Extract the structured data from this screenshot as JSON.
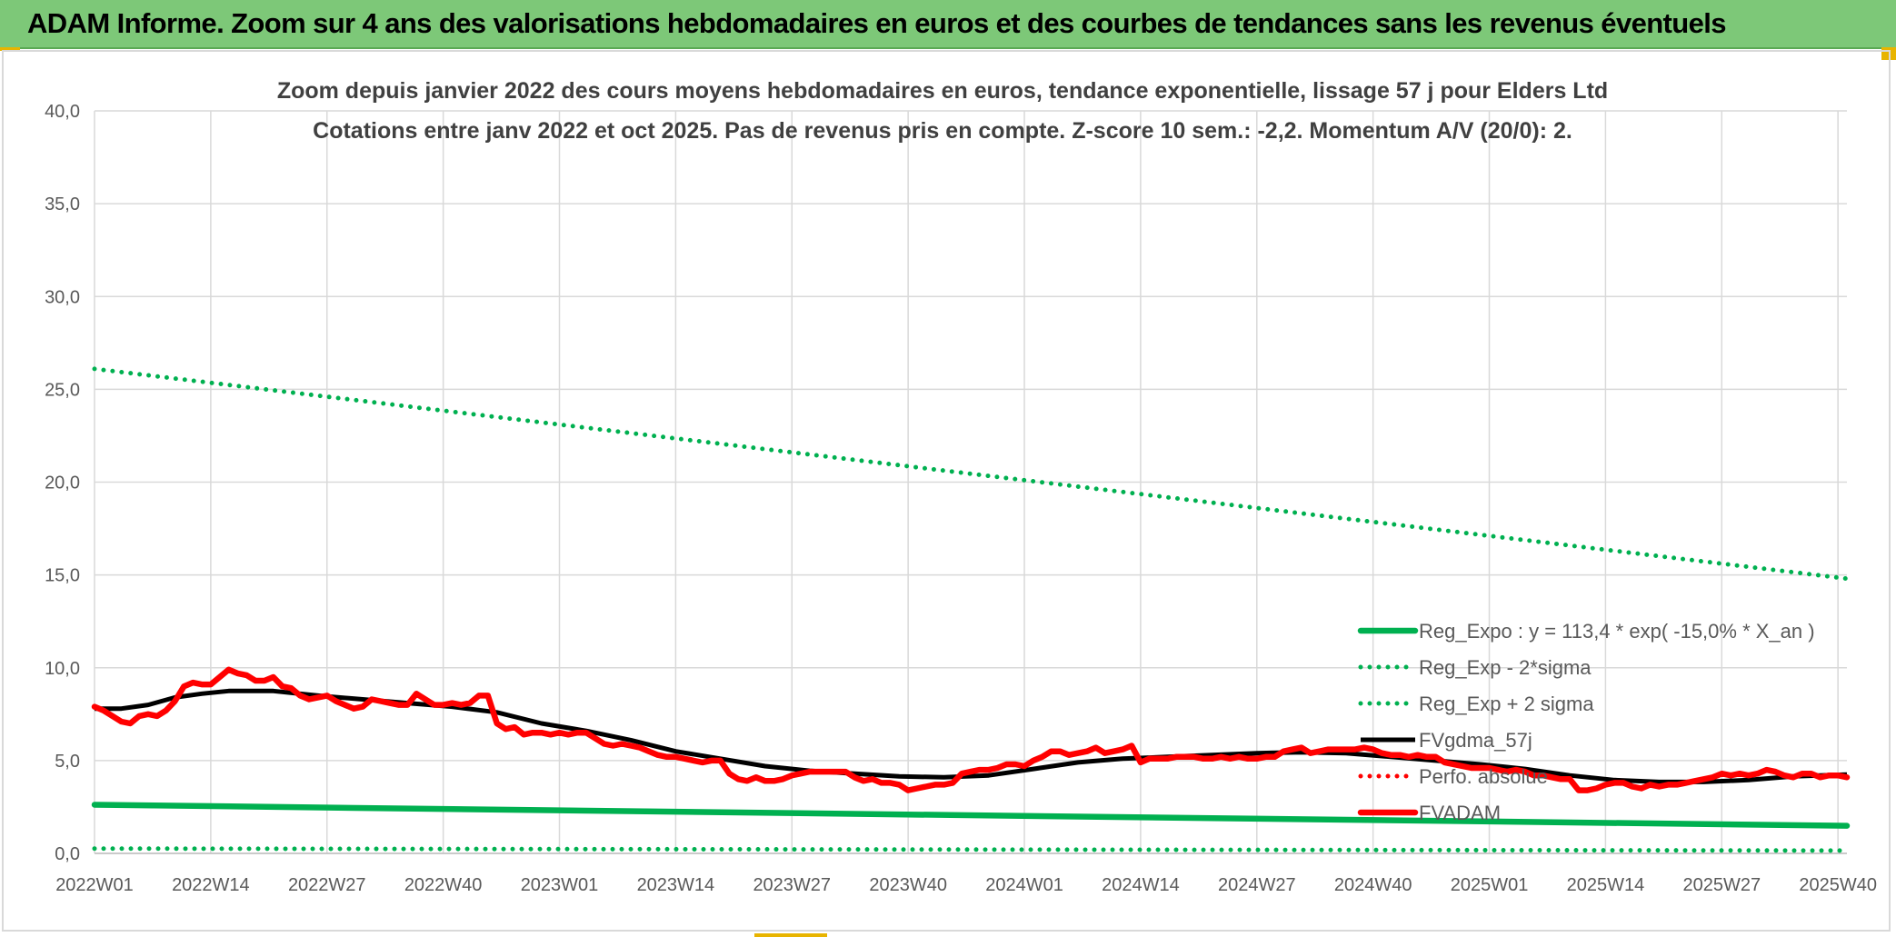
{
  "banner_title": "ADAM Informe. Zoom sur 4 ans des valorisations hebdomadaires en euros et des courbes de tendances sans les revenus éventuels",
  "colors": {
    "banner": "#7dc878",
    "trend": "#00b050",
    "price": "#ff0000",
    "mma": "#000000",
    "perf": "#ff0000",
    "grid": "#d9d9d9"
  },
  "chart_data": {
    "type": "line",
    "title_lines": [
      "Zoom depuis janvier 2022 des cours moyens hebdomadaires en euros, tendance exponentielle, lissage 57 j pour Elders Ltd",
      "Cotations entre janv 2022 et oct 2025. Pas de revenus pris en compte. Z-score 10 sem.: -2,2. Momentum A/V (20/0): 2."
    ],
    "xlabel": "",
    "ylabel": "",
    "ylim": [
      0,
      40
    ],
    "yticks": [
      "0,0",
      "5,0",
      "10,0",
      "15,0",
      "20,0",
      "25,0",
      "30,0",
      "35,0",
      "40,0"
    ],
    "x_range_weeks": [
      0,
      196
    ],
    "xticks": [
      {
        "label": "2022W01",
        "week": 0
      },
      {
        "label": "2022W14",
        "week": 13
      },
      {
        "label": "2022W27",
        "week": 26
      },
      {
        "label": "2022W40",
        "week": 39
      },
      {
        "label": "2023W01",
        "week": 52
      },
      {
        "label": "2023W14",
        "week": 65
      },
      {
        "label": "2023W27",
        "week": 78
      },
      {
        "label": "2023W40",
        "week": 91
      },
      {
        "label": "2024W01",
        "week": 104
      },
      {
        "label": "2024W14",
        "week": 117
      },
      {
        "label": "2024W27",
        "week": 130
      },
      {
        "label": "2024W40",
        "week": 143
      },
      {
        "label": "2025W01",
        "week": 156
      },
      {
        "label": "2025W14",
        "week": 169
      },
      {
        "label": "2025W27",
        "week": 182
      },
      {
        "label": "2025W40",
        "week": 195
      }
    ],
    "legend_position": "right",
    "series": [
      {
        "name": "Reg_Expo : y = 113,4 * exp( -15,0% *  X_an )",
        "style": "solid-thick",
        "color": "#00b050",
        "points": [
          [
            0,
            2.62
          ],
          [
            196,
            1.49
          ]
        ]
      },
      {
        "name": "Reg_Exp - 2*sigma",
        "style": "dotted",
        "color": "#00b050",
        "points": [
          [
            0,
            0.26
          ],
          [
            196,
            0.15
          ]
        ]
      },
      {
        "name": "Reg_Exp + 2 sigma",
        "style": "dotted",
        "color": "#00b050",
        "points": [
          [
            0,
            26.1
          ],
          [
            196,
            14.8
          ]
        ]
      },
      {
        "name": "FVgdma_57j",
        "style": "solid",
        "color": "#000000",
        "points": [
          [
            0,
            7.8
          ],
          [
            3,
            7.8
          ],
          [
            6,
            8.0
          ],
          [
            9,
            8.4
          ],
          [
            12,
            8.6
          ],
          [
            15,
            8.75
          ],
          [
            20,
            8.75
          ],
          [
            25,
            8.5
          ],
          [
            30,
            8.3
          ],
          [
            35,
            8.1
          ],
          [
            40,
            7.9
          ],
          [
            45,
            7.6
          ],
          [
            50,
            7.0
          ],
          [
            55,
            6.6
          ],
          [
            60,
            6.1
          ],
          [
            65,
            5.5
          ],
          [
            70,
            5.1
          ],
          [
            75,
            4.7
          ],
          [
            80,
            4.45
          ],
          [
            85,
            4.3
          ],
          [
            90,
            4.15
          ],
          [
            95,
            4.1
          ],
          [
            100,
            4.2
          ],
          [
            105,
            4.55
          ],
          [
            110,
            4.9
          ],
          [
            115,
            5.1
          ],
          [
            120,
            5.2
          ],
          [
            125,
            5.3
          ],
          [
            130,
            5.4
          ],
          [
            135,
            5.45
          ],
          [
            140,
            5.4
          ],
          [
            145,
            5.2
          ],
          [
            150,
            5.0
          ],
          [
            155,
            4.8
          ],
          [
            160,
            4.55
          ],
          [
            165,
            4.2
          ],
          [
            170,
            3.95
          ],
          [
            175,
            3.85
          ],
          [
            180,
            3.85
          ],
          [
            185,
            3.95
          ],
          [
            190,
            4.15
          ],
          [
            196,
            4.25
          ]
        ]
      },
      {
        "name": "Perfo. absolue",
        "style": "dotted",
        "color": "#ff0000",
        "points": []
      },
      {
        "name": "FVADAM",
        "style": "solid-thick",
        "color": "#ff0000",
        "points": [
          [
            0,
            7.9
          ],
          [
            1,
            7.7
          ],
          [
            2,
            7.4
          ],
          [
            3,
            7.1
          ],
          [
            4,
            7.0
          ],
          [
            5,
            7.4
          ],
          [
            6,
            7.5
          ],
          [
            7,
            7.4
          ],
          [
            8,
            7.7
          ],
          [
            9,
            8.2
          ],
          [
            10,
            9.0
          ],
          [
            11,
            9.2
          ],
          [
            12,
            9.1
          ],
          [
            13,
            9.1
          ],
          [
            14,
            9.5
          ],
          [
            15,
            9.9
          ],
          [
            16,
            9.7
          ],
          [
            17,
            9.6
          ],
          [
            18,
            9.3
          ],
          [
            19,
            9.3
          ],
          [
            20,
            9.5
          ],
          [
            21,
            9.0
          ],
          [
            22,
            8.9
          ],
          [
            23,
            8.5
          ],
          [
            24,
            8.3
          ],
          [
            25,
            8.4
          ],
          [
            26,
            8.5
          ],
          [
            27,
            8.2
          ],
          [
            28,
            8.0
          ],
          [
            29,
            7.8
          ],
          [
            30,
            7.9
          ],
          [
            31,
            8.3
          ],
          [
            32,
            8.2
          ],
          [
            33,
            8.1
          ],
          [
            34,
            8.0
          ],
          [
            35,
            8.0
          ],
          [
            36,
            8.6
          ],
          [
            37,
            8.3
          ],
          [
            38,
            8.0
          ],
          [
            39,
            8.0
          ],
          [
            40,
            8.1
          ],
          [
            41,
            8.0
          ],
          [
            42,
            8.1
          ],
          [
            43,
            8.5
          ],
          [
            44,
            8.5
          ],
          [
            45,
            7.0
          ],
          [
            46,
            6.7
          ],
          [
            47,
            6.8
          ],
          [
            48,
            6.4
          ],
          [
            49,
            6.5
          ],
          [
            50,
            6.5
          ],
          [
            51,
            6.4
          ],
          [
            52,
            6.5
          ],
          [
            53,
            6.4
          ],
          [
            54,
            6.5
          ],
          [
            55,
            6.5
          ],
          [
            56,
            6.2
          ],
          [
            57,
            5.9
          ],
          [
            58,
            5.8
          ],
          [
            59,
            5.9
          ],
          [
            60,
            5.8
          ],
          [
            61,
            5.7
          ],
          [
            62,
            5.5
          ],
          [
            63,
            5.3
          ],
          [
            64,
            5.2
          ],
          [
            65,
            5.2
          ],
          [
            66,
            5.1
          ],
          [
            67,
            5.0
          ],
          [
            68,
            4.9
          ],
          [
            69,
            5.0
          ],
          [
            70,
            5.0
          ],
          [
            71,
            4.3
          ],
          [
            72,
            4.0
          ],
          [
            73,
            3.9
          ],
          [
            74,
            4.1
          ],
          [
            75,
            3.9
          ],
          [
            76,
            3.9
          ],
          [
            77,
            4.0
          ],
          [
            78,
            4.2
          ],
          [
            79,
            4.3
          ],
          [
            80,
            4.4
          ],
          [
            81,
            4.4
          ],
          [
            82,
            4.4
          ],
          [
            83,
            4.4
          ],
          [
            84,
            4.4
          ],
          [
            85,
            4.1
          ],
          [
            86,
            3.9
          ],
          [
            87,
            4.0
          ],
          [
            88,
            3.8
          ],
          [
            89,
            3.8
          ],
          [
            90,
            3.7
          ],
          [
            91,
            3.4
          ],
          [
            92,
            3.5
          ],
          [
            93,
            3.6
          ],
          [
            94,
            3.7
          ],
          [
            95,
            3.7
          ],
          [
            96,
            3.8
          ],
          [
            97,
            4.3
          ],
          [
            98,
            4.4
          ],
          [
            99,
            4.5
          ],
          [
            100,
            4.5
          ],
          [
            101,
            4.6
          ],
          [
            102,
            4.8
          ],
          [
            103,
            4.8
          ],
          [
            104,
            4.7
          ],
          [
            105,
            5.0
          ],
          [
            106,
            5.2
          ],
          [
            107,
            5.5
          ],
          [
            108,
            5.5
          ],
          [
            109,
            5.3
          ],
          [
            110,
            5.4
          ],
          [
            111,
            5.5
          ],
          [
            112,
            5.7
          ],
          [
            113,
            5.4
          ],
          [
            114,
            5.5
          ],
          [
            115,
            5.6
          ],
          [
            116,
            5.8
          ],
          [
            117,
            4.9
          ],
          [
            118,
            5.1
          ],
          [
            119,
            5.1
          ],
          [
            120,
            5.1
          ],
          [
            121,
            5.2
          ],
          [
            122,
            5.2
          ],
          [
            123,
            5.2
          ],
          [
            124,
            5.1
          ],
          [
            125,
            5.1
          ],
          [
            126,
            5.2
          ],
          [
            127,
            5.1
          ],
          [
            128,
            5.2
          ],
          [
            129,
            5.1
          ],
          [
            130,
            5.1
          ],
          [
            131,
            5.2
          ],
          [
            132,
            5.2
          ],
          [
            133,
            5.5
          ],
          [
            134,
            5.6
          ],
          [
            135,
            5.7
          ],
          [
            136,
            5.4
          ],
          [
            137,
            5.5
          ],
          [
            138,
            5.6
          ],
          [
            139,
            5.6
          ],
          [
            140,
            5.6
          ],
          [
            141,
            5.6
          ],
          [
            142,
            5.7
          ],
          [
            143,
            5.6
          ],
          [
            144,
            5.4
          ],
          [
            145,
            5.3
          ],
          [
            146,
            5.3
          ],
          [
            147,
            5.2
          ],
          [
            148,
            5.3
          ],
          [
            149,
            5.2
          ],
          [
            150,
            5.2
          ],
          [
            151,
            4.9
          ],
          [
            152,
            4.8
          ],
          [
            153,
            4.7
          ],
          [
            154,
            4.6
          ],
          [
            155,
            4.6
          ],
          [
            156,
            4.6
          ],
          [
            157,
            4.5
          ],
          [
            158,
            4.4
          ],
          [
            159,
            4.5
          ],
          [
            160,
            4.4
          ],
          [
            161,
            4.2
          ],
          [
            162,
            4.2
          ],
          [
            163,
            4.1
          ],
          [
            164,
            4.0
          ],
          [
            165,
            4.0
          ],
          [
            166,
            3.4
          ],
          [
            167,
            3.4
          ],
          [
            168,
            3.5
          ],
          [
            169,
            3.7
          ],
          [
            170,
            3.8
          ],
          [
            171,
            3.8
          ],
          [
            172,
            3.6
          ],
          [
            173,
            3.5
          ],
          [
            174,
            3.7
          ],
          [
            175,
            3.6
          ],
          [
            176,
            3.7
          ],
          [
            177,
            3.7
          ],
          [
            178,
            3.8
          ],
          [
            179,
            3.9
          ],
          [
            180,
            4.0
          ],
          [
            181,
            4.1
          ],
          [
            182,
            4.3
          ],
          [
            183,
            4.2
          ],
          [
            184,
            4.3
          ],
          [
            185,
            4.2
          ],
          [
            186,
            4.3
          ],
          [
            187,
            4.5
          ],
          [
            188,
            4.4
          ],
          [
            189,
            4.2
          ],
          [
            190,
            4.1
          ],
          [
            191,
            4.3
          ],
          [
            192,
            4.3
          ],
          [
            193,
            4.1
          ],
          [
            194,
            4.2
          ],
          [
            195,
            4.2
          ],
          [
            196,
            4.1
          ]
        ]
      }
    ]
  }
}
